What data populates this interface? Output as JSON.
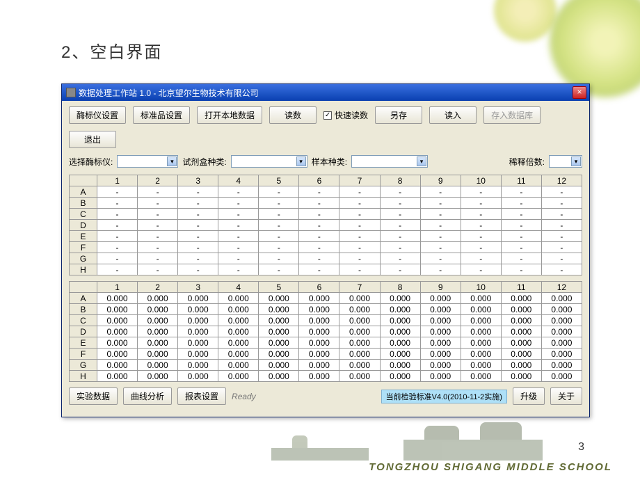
{
  "slide": {
    "title": "2、空白界面",
    "page_number": "3",
    "footer": "TONGZHOU  SHIGANG  MIDDLE  SCHOOL"
  },
  "window": {
    "title": "数据处理工作站 1.0 - 北京望尔生物技术有限公司",
    "close": "×"
  },
  "toolbar": {
    "enzyme_setup": "酶标仪设置",
    "standard_setup": "标准品设置",
    "open_local": "打开本地数据",
    "read": "读数",
    "quick_read": "快速读数",
    "save_as": "另存",
    "load": "读入",
    "save_db": "存入数据库",
    "exit": "退出"
  },
  "form": {
    "select_enzyme": "选择酶标仪:",
    "reagent_kind": "试剂盒种类:",
    "sample_kind": "样本种类:",
    "dilution": "稀释倍数:"
  },
  "table1": {
    "columns": [
      "1",
      "2",
      "3",
      "4",
      "5",
      "6",
      "7",
      "8",
      "9",
      "10",
      "11",
      "12"
    ],
    "rows": [
      "A",
      "B",
      "C",
      "D",
      "E",
      "F",
      "G",
      "H"
    ],
    "cell": "-"
  },
  "table2": {
    "columns": [
      "1",
      "2",
      "3",
      "4",
      "5",
      "6",
      "7",
      "8",
      "9",
      "10",
      "11",
      "12"
    ],
    "rows": [
      "A",
      "B",
      "C",
      "D",
      "E",
      "F",
      "G",
      "H"
    ],
    "cell": "0.000"
  },
  "bottom": {
    "exp_data": "实验数据",
    "curve": "曲线分析",
    "report": "报表设置",
    "ready": "Ready",
    "status": "当前检验标准V4.0(2010-11-2实施)",
    "upgrade": "升级",
    "about": "关于"
  }
}
